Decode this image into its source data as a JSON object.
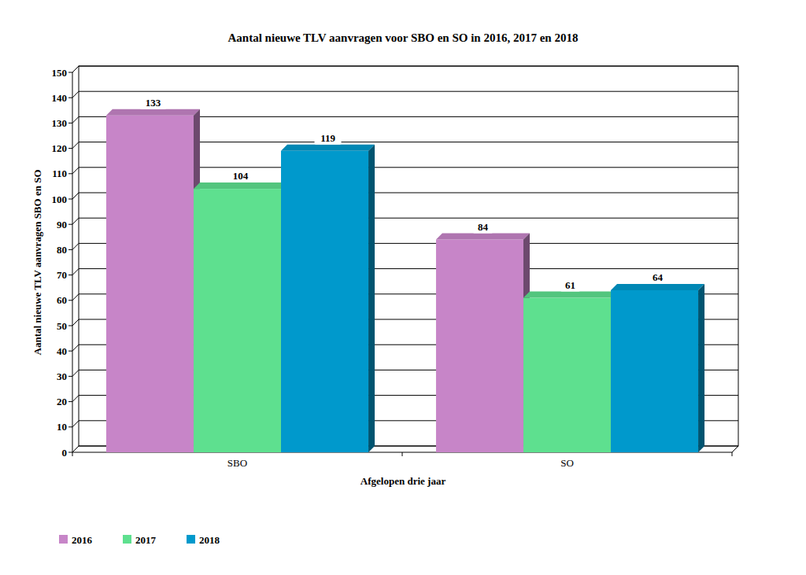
{
  "chart_data": {
    "type": "bar",
    "title": "Aantal nieuwe TLV aanvragen voor SBO en SO in 2016, 2017 en 2018",
    "x_label": "Afgelopen drie jaar",
    "y_label": "Aantal nieuwe TLV aanvragen SBO en SO",
    "categories": [
      "SBO",
      "SO"
    ],
    "series": [
      {
        "name": "2016",
        "color": "#c785c8",
        "values": [
          133,
          84
        ]
      },
      {
        "name": "2017",
        "color": "#5ee08f",
        "values": [
          104,
          61
        ]
      },
      {
        "name": "2018",
        "color": "#0099cc",
        "values": [
          119,
          64
        ]
      }
    ],
    "ylim": [
      0,
      150
    ],
    "yticks": [
      0,
      10,
      20,
      30,
      40,
      50,
      60,
      70,
      80,
      90,
      100,
      110,
      120,
      130,
      140,
      150
    ],
    "grid": true,
    "legend": "bottom-left",
    "data_labels": true
  }
}
